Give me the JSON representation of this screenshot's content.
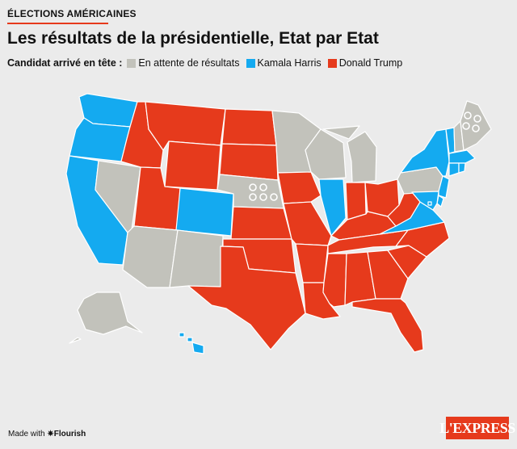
{
  "header": {
    "kicker": "ÉLECTIONS AMÉRICAINES",
    "title": "Les résultats de la présidentielle, Etat par Etat"
  },
  "legend": {
    "label": "Candidat arrivé en tête :",
    "items": [
      {
        "key": "pending",
        "label": "En attente de résultats",
        "color": "#c2c2bb"
      },
      {
        "key": "harris",
        "label": "Kamala Harris",
        "color": "#14aaf0"
      },
      {
        "key": "trump",
        "label": "Donald Trump",
        "color": "#e63a1c"
      }
    ]
  },
  "map_data": {
    "colors": {
      "pending": "#c2c2bb",
      "harris": "#14aaf0",
      "trump": "#e63a1c"
    },
    "states": [
      {
        "code": "WA",
        "result": "harris"
      },
      {
        "code": "OR",
        "result": "harris"
      },
      {
        "code": "CA",
        "result": "harris"
      },
      {
        "code": "NV",
        "result": "pending"
      },
      {
        "code": "ID",
        "result": "trump"
      },
      {
        "code": "MT",
        "result": "trump"
      },
      {
        "code": "WY",
        "result": "trump"
      },
      {
        "code": "UT",
        "result": "trump"
      },
      {
        "code": "AZ",
        "result": "pending"
      },
      {
        "code": "CO",
        "result": "harris"
      },
      {
        "code": "NM",
        "result": "pending"
      },
      {
        "code": "ND",
        "result": "trump"
      },
      {
        "code": "SD",
        "result": "trump"
      },
      {
        "code": "NE",
        "result": "pending"
      },
      {
        "code": "KS",
        "result": "trump"
      },
      {
        "code": "OK",
        "result": "trump"
      },
      {
        "code": "TX",
        "result": "trump"
      },
      {
        "code": "MN",
        "result": "pending"
      },
      {
        "code": "IA",
        "result": "trump"
      },
      {
        "code": "MO",
        "result": "trump"
      },
      {
        "code": "AR",
        "result": "trump"
      },
      {
        "code": "LA",
        "result": "trump"
      },
      {
        "code": "WI",
        "result": "pending"
      },
      {
        "code": "IL",
        "result": "harris"
      },
      {
        "code": "MI",
        "result": "pending"
      },
      {
        "code": "IN",
        "result": "trump"
      },
      {
        "code": "OH",
        "result": "trump"
      },
      {
        "code": "KY",
        "result": "trump"
      },
      {
        "code": "TN",
        "result": "trump"
      },
      {
        "code": "MS",
        "result": "trump"
      },
      {
        "code": "AL",
        "result": "trump"
      },
      {
        "code": "GA",
        "result": "trump"
      },
      {
        "code": "FL",
        "result": "trump"
      },
      {
        "code": "SC",
        "result": "trump"
      },
      {
        "code": "NC",
        "result": "trump"
      },
      {
        "code": "VA",
        "result": "harris"
      },
      {
        "code": "WV",
        "result": "trump"
      },
      {
        "code": "PA",
        "result": "pending"
      },
      {
        "code": "NY",
        "result": "harris"
      },
      {
        "code": "VT",
        "result": "harris"
      },
      {
        "code": "NH",
        "result": "pending"
      },
      {
        "code": "ME",
        "result": "pending"
      },
      {
        "code": "MA",
        "result": "harris"
      },
      {
        "code": "CT",
        "result": "harris"
      },
      {
        "code": "RI",
        "result": "harris"
      },
      {
        "code": "NJ",
        "result": "harris"
      },
      {
        "code": "DE",
        "result": "harris"
      },
      {
        "code": "MD",
        "result": "harris"
      },
      {
        "code": "DC",
        "result": "harris"
      },
      {
        "code": "AK",
        "result": "pending"
      },
      {
        "code": "HI",
        "result": "harris"
      }
    ]
  },
  "footer": {
    "made_with": "Made with",
    "brand": "✷Flourish"
  },
  "logo": {
    "text": "L'EXPRESS"
  }
}
